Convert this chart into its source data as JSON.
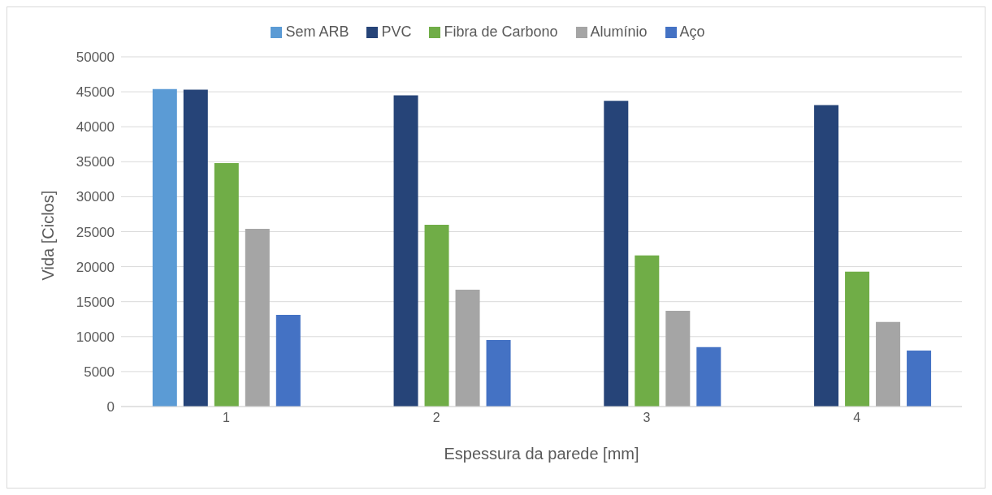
{
  "chart_data": {
    "type": "bar",
    "xlabel": "Espessura da parede [mm]",
    "ylabel": "Vida [Ciclos]",
    "categories": [
      "1",
      "2",
      "3",
      "4"
    ],
    "series": [
      {
        "name": "Sem ARB",
        "color": "#5b9bd5",
        "values": [
          45400,
          null,
          null,
          null
        ]
      },
      {
        "name": "PVC",
        "color": "#264478",
        "values": [
          45300,
          44500,
          43700,
          43100
        ]
      },
      {
        "name": "Fibra de Carbono",
        "color": "#70ad47",
        "values": [
          34800,
          26000,
          21600,
          19300
        ]
      },
      {
        "name": "Alumínio",
        "color": "#a5a5a5",
        "values": [
          25400,
          16700,
          13700,
          12100
        ]
      },
      {
        "name": "Aço",
        "color": "#4472c4",
        "values": [
          13100,
          9500,
          8500,
          8000
        ]
      }
    ],
    "ylim": [
      0,
      50000
    ],
    "yticks": [
      0,
      5000,
      10000,
      15000,
      20000,
      25000,
      30000,
      35000,
      40000,
      45000,
      50000
    ],
    "grid": "y",
    "legend": "top"
  }
}
